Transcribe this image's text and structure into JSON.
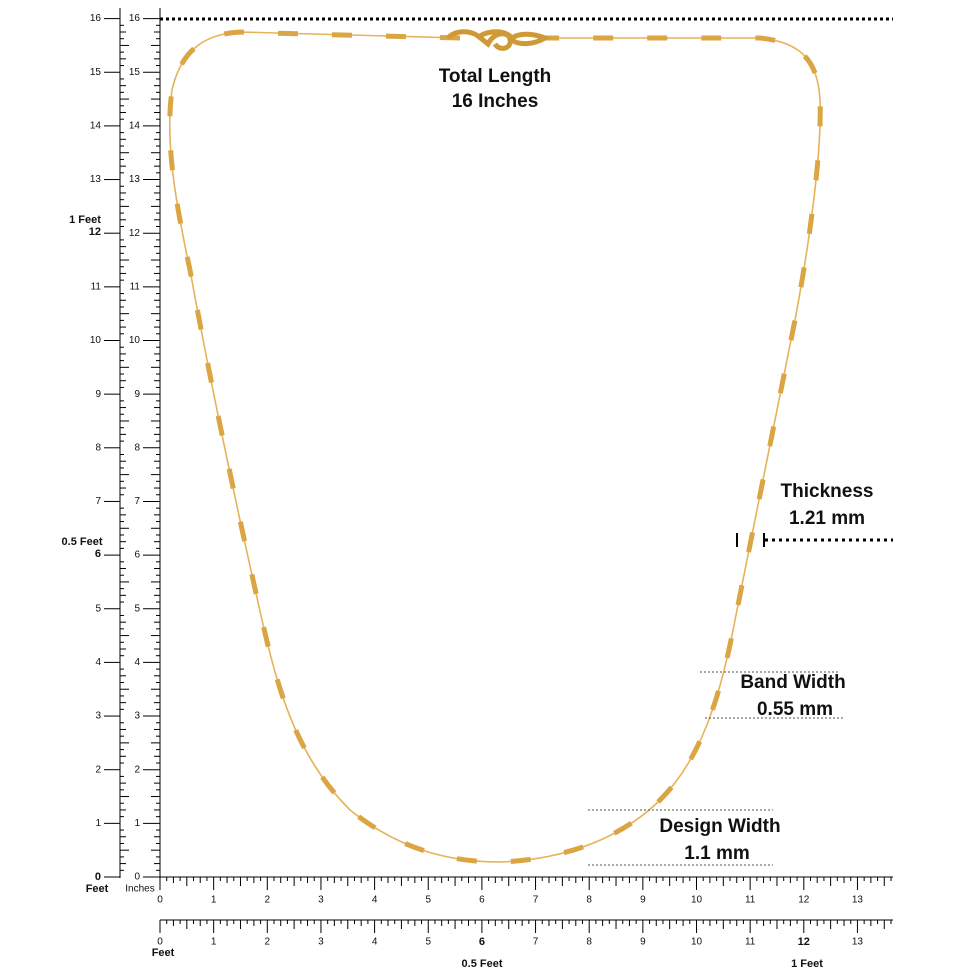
{
  "annotations": {
    "total_length": {
      "label": "Total Length",
      "value": "16 Inches"
    },
    "thickness": {
      "label": "Thickness",
      "value": "1.21 mm"
    },
    "band_width": {
      "label": "Band Width",
      "value": "0.55 mm"
    },
    "design_width": {
      "label": "Design Width",
      "value": "1.1 mm"
    }
  },
  "left_ruler": {
    "outer_labels": [
      0,
      1,
      2,
      3,
      4,
      5,
      6,
      7,
      8,
      9,
      10,
      11,
      12,
      13,
      14,
      15,
      16
    ],
    "inner_labels": [
      0,
      1,
      2,
      3,
      4,
      5,
      6,
      7,
      8,
      9,
      10,
      11,
      12,
      13,
      14,
      15,
      16
    ],
    "feet": "Feet",
    "half_feet": "0.5 Feet",
    "one_feet": "1 Feet"
  },
  "bottom_ruler": {
    "unit": "Inches",
    "labels": [
      0,
      1,
      2,
      3,
      4,
      5,
      6,
      7,
      8,
      9,
      10,
      11,
      12,
      13
    ]
  },
  "bottom_ruler_2": {
    "labels": [
      0,
      1,
      2,
      3,
      4,
      5,
      6,
      7,
      8,
      9,
      10,
      11,
      12,
      13
    ],
    "feet": "Feet",
    "half_feet": "0.5 Feet",
    "one_feet": "1 Feet"
  }
}
